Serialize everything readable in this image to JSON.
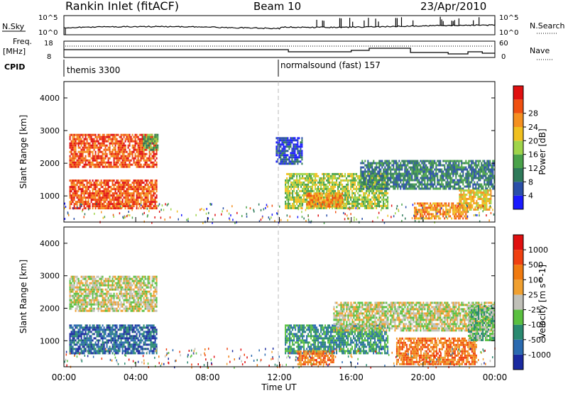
{
  "header": {
    "station": "Rankin Inlet (fitACF)",
    "beam": "Beam 10",
    "date": "23/Apr/2010"
  },
  "top_panels": {
    "nsky_label": "N.Sky",
    "nsearch_label": "N.Search",
    "noise_ticks": [
      "10^5",
      "10^0"
    ],
    "freq_label": "Freq.",
    "freq_unit": "[MHz]",
    "freq_ticks": [
      "18",
      "8"
    ],
    "nave_label": "Nave",
    "nave_ticks": [
      "60",
      "0"
    ],
    "cpid_label": "CPID",
    "cpid_segments": [
      {
        "label": "themis 3300",
        "start_hour": 0
      },
      {
        "label": "normalsound (fast) 157",
        "start_hour": 12
      }
    ]
  },
  "colors": {
    "power_scale": [
      "#1a1aff",
      "#2a4fa8",
      "#2f7a5a",
      "#4aa24a",
      "#9fd44a",
      "#f0c020",
      "#f59020",
      "#f05010",
      "#e01010"
    ],
    "velocity_scale": [
      "#1a2aa0",
      "#2a6ab0",
      "#2a8a70",
      "#5ac040",
      "#c0c0b8",
      "#f0a030",
      "#f07a10",
      "#f04010",
      "#e01010"
    ]
  },
  "chart_data": [
    {
      "type": "heatmap",
      "panel": "power",
      "ylabel": "Slant Range [km]",
      "ylim": [
        200,
        4500
      ],
      "yticks": [
        1000,
        2000,
        3000,
        4000
      ],
      "xlim": [
        0,
        24
      ],
      "colorbar_label": "Power [dB]",
      "colorbar_ticks": [
        4,
        8,
        12,
        16,
        20,
        24,
        28
      ],
      "regions": [
        {
          "t0": 0.3,
          "t1": 5.2,
          "r0": 1900,
          "r1": 2900,
          "level": 7
        },
        {
          "t0": 0.3,
          "t1": 5.2,
          "r0": 600,
          "r1": 1500,
          "level": 7
        },
        {
          "t0": 4.4,
          "t1": 5.2,
          "r0": 2400,
          "r1": 2900,
          "level": 3
        },
        {
          "t0": 11.8,
          "t1": 13.3,
          "r0": 2000,
          "r1": 2800,
          "level": 1
        },
        {
          "t0": 12.3,
          "t1": 18.0,
          "r0": 600,
          "r1": 1700,
          "level": 4
        },
        {
          "t0": 13.5,
          "t1": 15.5,
          "r0": 700,
          "r1": 1100,
          "level": 6
        },
        {
          "t0": 16.5,
          "t1": 24.0,
          "r0": 1200,
          "r1": 2100,
          "level": 2
        },
        {
          "t0": 19.5,
          "t1": 22.5,
          "r0": 300,
          "r1": 800,
          "level": 6
        },
        {
          "t0": 22.0,
          "t1": 23.8,
          "r0": 600,
          "r1": 1200,
          "level": 5
        }
      ]
    },
    {
      "type": "heatmap",
      "panel": "velocity",
      "ylabel": "Slant Range [km]",
      "xlabel": "Time UT",
      "ylim": [
        200,
        4500
      ],
      "yticks": [
        1000,
        2000,
        3000,
        4000
      ],
      "xlim": [
        0,
        24
      ],
      "xticks": [
        "00:00",
        "04:00",
        "08:00",
        "12:00",
        "16:00",
        "20:00",
        "00:00"
      ],
      "colorbar_label": "Velocity [m s^-1]",
      "colorbar_ticks": [
        1000,
        500,
        100,
        25,
        -25,
        -100,
        -500,
        -1000
      ],
      "regions": [
        {
          "t0": 0.3,
          "t1": 5.2,
          "r0": 1900,
          "r1": 3000,
          "level": 4
        },
        {
          "t0": 0.3,
          "t1": 5.2,
          "r0": 600,
          "r1": 1500,
          "level": 1
        },
        {
          "t0": 12.3,
          "t1": 18.0,
          "r0": 600,
          "r1": 1500,
          "level": 2
        },
        {
          "t0": 13.0,
          "t1": 15.0,
          "r0": 300,
          "r1": 700,
          "level": 6
        },
        {
          "t0": 15.0,
          "t1": 24.0,
          "r0": 1300,
          "r1": 2200,
          "level": 4
        },
        {
          "t0": 18.5,
          "t1": 23.0,
          "r0": 300,
          "r1": 1100,
          "level": 6
        },
        {
          "t0": 22.5,
          "t1": 24.0,
          "r0": 1000,
          "r1": 2100,
          "level": 3
        }
      ]
    }
  ]
}
